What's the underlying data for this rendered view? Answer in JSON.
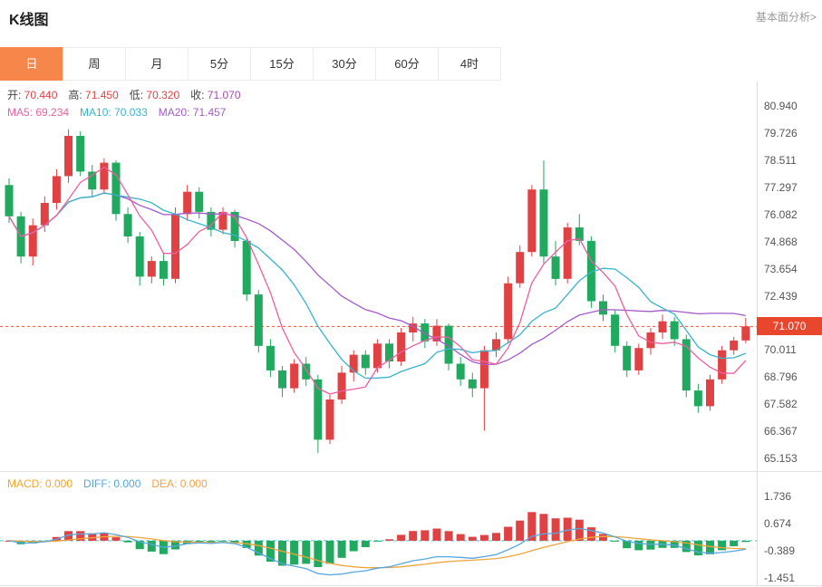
{
  "header": {
    "title": "K线图",
    "link_label": "基本面分析>"
  },
  "tabs": [
    {
      "label": "日",
      "active": true
    },
    {
      "label": "周",
      "active": false
    },
    {
      "label": "月",
      "active": false
    },
    {
      "label": "5分",
      "active": false
    },
    {
      "label": "15分",
      "active": false
    },
    {
      "label": "30分",
      "active": false
    },
    {
      "label": "60分",
      "active": false
    },
    {
      "label": "4时",
      "active": false
    }
  ],
  "legend": {
    "ohlc_items": [
      {
        "label": "开:",
        "value": "70.440",
        "color": "#e04244"
      },
      {
        "label": "高:",
        "value": "71.450",
        "color": "#e04244"
      },
      {
        "label": "低:",
        "value": "70.320",
        "color": "#e04244"
      },
      {
        "label": "收:",
        "value": "71.070",
        "color": "#a84bb5"
      }
    ],
    "ma_items": [
      {
        "text": "MA5: 69.234",
        "color": "#ee5fa0"
      },
      {
        "text": "MA10: 70.033",
        "color": "#38b4cd"
      },
      {
        "text": "MA20: 71.457",
        "color": "#a45bc8"
      }
    ],
    "macd_items": [
      {
        "text": "MACD: 0.000",
        "color": "#f5a623"
      },
      {
        "text": "DIFF: 0.000",
        "color": "#56a4e0"
      },
      {
        "text": "DEA: 0.000",
        "color": "#f2a24a"
      }
    ]
  },
  "price_badge": "71.070",
  "colors": {
    "up": "#e04244",
    "down": "#21a95f",
    "ma5": "#ee5fa0",
    "ma10": "#38b4cd",
    "ma20": "#a45bc8",
    "diff_line": "#58a7e0",
    "dea_line": "#f0a43c",
    "price_line": "#e8543e",
    "badge_bg": "#e8472d",
    "tab_active_bg": "#f6864a",
    "macd_zero": "#45c5d8",
    "axis_border": "#dddddd"
  },
  "chart_data": {
    "type": "candlestick",
    "title": "K线图",
    "interval": "日",
    "current_price": 71.07,
    "ohlc": {
      "open": 70.44,
      "high": 71.45,
      "low": 70.32,
      "close": 71.07
    },
    "ma": {
      "MA5": 69.234,
      "MA10": 70.033,
      "MA20": 71.457
    },
    "y_axis_ticks": [
      80.94,
      79.726,
      78.511,
      77.297,
      76.082,
      74.868,
      73.654,
      72.439,
      70.011,
      68.796,
      67.582,
      66.367,
      65.153
    ],
    "candles_ohlc": [
      [
        77.4,
        77.7,
        75.7,
        76.0
      ],
      [
        76.0,
        76.2,
        73.9,
        74.2
      ],
      [
        74.2,
        75.9,
        73.8,
        75.6
      ],
      [
        75.6,
        76.9,
        75.3,
        76.6
      ],
      [
        76.6,
        78.1,
        76.3,
        77.8
      ],
      [
        77.8,
        79.9,
        77.5,
        79.6
      ],
      [
        79.6,
        79.8,
        77.8,
        78.0
      ],
      [
        78.0,
        78.3,
        76.9,
        77.2
      ],
      [
        77.2,
        78.6,
        77.0,
        78.4
      ],
      [
        78.4,
        78.5,
        75.8,
        76.1
      ],
      [
        76.1,
        76.4,
        74.8,
        75.1
      ],
      [
        75.1,
        75.3,
        72.9,
        73.3
      ],
      [
        73.3,
        74.2,
        73.0,
        74.0
      ],
      [
        74.0,
        74.4,
        72.9,
        73.2
      ],
      [
        73.2,
        76.4,
        73.0,
        76.1
      ],
      [
        76.1,
        77.4,
        75.8,
        77.1
      ],
      [
        77.1,
        77.3,
        75.9,
        76.2
      ],
      [
        76.2,
        76.4,
        75.1,
        75.4
      ],
      [
        75.4,
        76.4,
        75.2,
        76.2
      ],
      [
        76.2,
        76.3,
        74.6,
        74.9
      ],
      [
        74.9,
        75.0,
        72.2,
        72.5
      ],
      [
        72.5,
        72.7,
        69.9,
        70.2
      ],
      [
        70.2,
        70.5,
        68.8,
        69.1
      ],
      [
        69.1,
        69.3,
        67.9,
        68.3
      ],
      [
        68.3,
        69.6,
        68.1,
        69.4
      ],
      [
        69.4,
        69.7,
        68.4,
        68.7
      ],
      [
        68.7,
        68.9,
        65.4,
        66.0
      ],
      [
        66.0,
        68.0,
        65.8,
        67.8
      ],
      [
        67.8,
        69.3,
        67.6,
        69.0
      ],
      [
        69.0,
        70.0,
        68.6,
        69.8
      ],
      [
        69.8,
        70.0,
        68.9,
        69.2
      ],
      [
        69.2,
        70.5,
        69.0,
        70.3
      ],
      [
        70.3,
        70.5,
        69.2,
        69.5
      ],
      [
        69.5,
        71.0,
        69.3,
        70.8
      ],
      [
        70.8,
        71.5,
        70.4,
        71.2
      ],
      [
        71.2,
        71.4,
        70.1,
        70.4
      ],
      [
        70.4,
        71.4,
        70.2,
        71.1
      ],
      [
        71.1,
        71.2,
        69.1,
        69.4
      ],
      [
        69.4,
        69.7,
        68.4,
        68.7
      ],
      [
        68.7,
        69.0,
        67.9,
        68.3
      ],
      [
        68.3,
        70.2,
        66.4,
        70.0
      ],
      [
        70.0,
        70.8,
        69.7,
        70.5
      ],
      [
        70.5,
        73.3,
        70.3,
        73.0
      ],
      [
        73.0,
        74.7,
        72.8,
        74.4
      ],
      [
        74.4,
        77.4,
        74.2,
        77.2
      ],
      [
        77.2,
        78.5,
        73.9,
        74.2
      ],
      [
        74.2,
        74.9,
        72.9,
        73.2
      ],
      [
        73.2,
        75.7,
        73.0,
        75.5
      ],
      [
        75.5,
        76.1,
        74.7,
        74.9
      ],
      [
        74.9,
        75.1,
        71.9,
        72.2
      ],
      [
        72.2,
        72.5,
        71.3,
        71.6
      ],
      [
        71.6,
        71.8,
        69.9,
        70.2
      ],
      [
        70.2,
        70.4,
        68.8,
        69.1
      ],
      [
        69.1,
        70.3,
        68.9,
        70.1
      ],
      [
        70.1,
        71.0,
        69.8,
        70.8
      ],
      [
        70.8,
        71.6,
        70.5,
        71.3
      ],
      [
        71.3,
        71.5,
        70.2,
        70.5
      ],
      [
        70.5,
        70.7,
        67.9,
        68.2
      ],
      [
        68.2,
        68.5,
        67.2,
        67.5
      ],
      [
        67.5,
        68.9,
        67.3,
        68.7
      ],
      [
        68.7,
        70.2,
        68.5,
        70.0
      ],
      [
        70.0,
        70.6,
        69.8,
        70.44
      ],
      [
        70.44,
        71.45,
        70.32,
        71.07
      ]
    ],
    "macd": {
      "MACD": 0.0,
      "DIFF": 0.0,
      "DEA": 0.0,
      "y_axis_ticks": [
        1.736,
        0.674,
        -0.389,
        -1.451
      ]
    }
  }
}
